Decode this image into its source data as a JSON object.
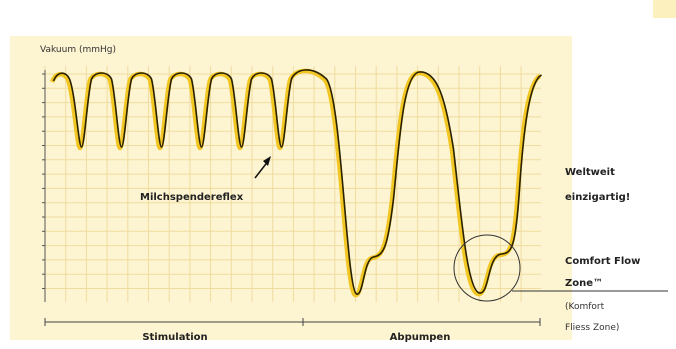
{
  "y_axis_label": "Vakuum (mmHg)",
  "annotation": "Milchspendereflex",
  "phases": [
    "Stimulation",
    "Abpumpen"
  ],
  "side_note": {
    "line1": "Weltweit",
    "line2": "einzigartig!"
  },
  "zone": {
    "line1": "Comfort Flow",
    "line2": "Zone™",
    "line3": "(Komfort",
    "line4": "Fliess Zone)"
  }
}
